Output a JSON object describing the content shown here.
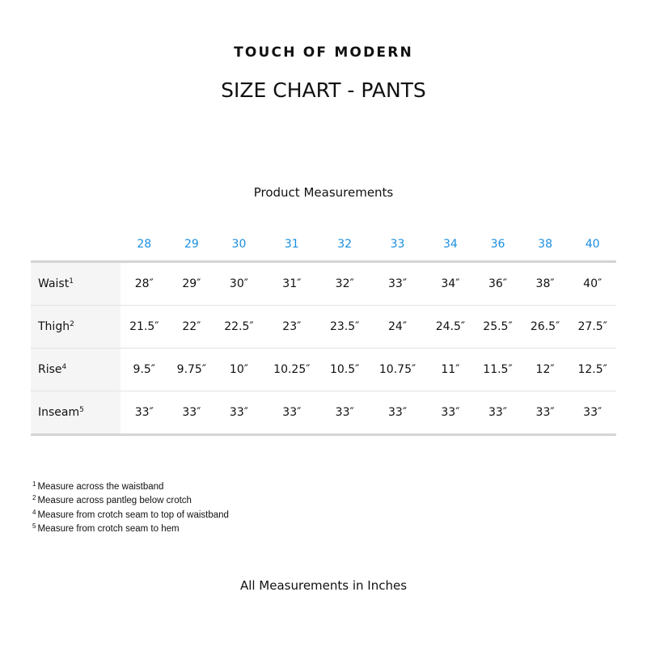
{
  "brand": "TOUCH OF MODERN",
  "title": "SIZE CHART - PANTS",
  "subtitle": "Product Measurements",
  "colors": {
    "size_header": "#1a8fe0",
    "label_bg": "#f5f5f5"
  },
  "table": {
    "sizes": [
      "28",
      "29",
      "30",
      "31",
      "32",
      "33",
      "34",
      "36",
      "38",
      "40"
    ],
    "rows": [
      {
        "label": "Waist",
        "note": "1",
        "values": [
          "28″",
          "29″",
          "30″",
          "31″",
          "32″",
          "33″",
          "34″",
          "36″",
          "38″",
          "40″"
        ]
      },
      {
        "label": "Thigh",
        "note": "2",
        "values": [
          "21.5″",
          "22″",
          "22.5″",
          "23″",
          "23.5″",
          "24″",
          "24.5″",
          "25.5″",
          "26.5″",
          "27.5″"
        ]
      },
      {
        "label": "Rise",
        "note": "4",
        "values": [
          "9.5″",
          "9.75″",
          "10″",
          "10.25″",
          "10.5″",
          "10.75″",
          "11″",
          "11.5″",
          "12″",
          "12.5″"
        ]
      },
      {
        "label": "Inseam",
        "note": "5",
        "values": [
          "33″",
          "33″",
          "33″",
          "33″",
          "33″",
          "33″",
          "33″",
          "33″",
          "33″",
          "33″"
        ]
      }
    ]
  },
  "footnotes": [
    {
      "mark": "1",
      "text": "Measure across the waistband"
    },
    {
      "mark": "2",
      "text": "Measure across pantleg below crotch"
    },
    {
      "mark": "4",
      "text": "Measure from crotch seam to top of waistband"
    },
    {
      "mark": "5",
      "text": "Measure from crotch seam to hem"
    }
  ],
  "bottom_note": "All Measurements in Inches"
}
